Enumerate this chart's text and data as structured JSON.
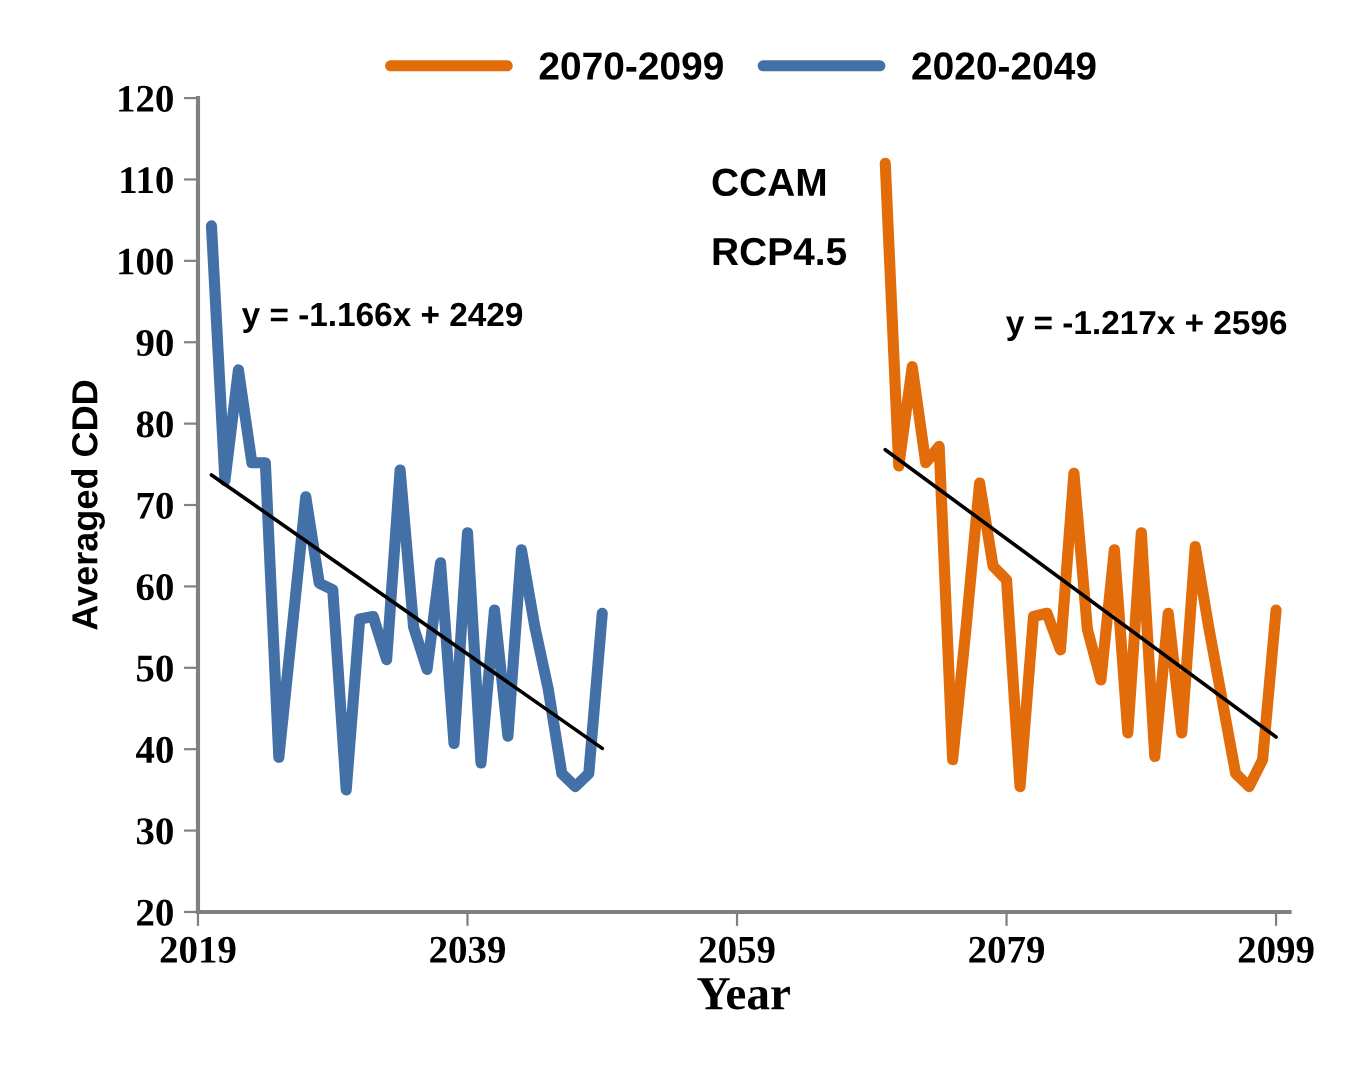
{
  "chart_data": {
    "type": "line",
    "xlabel": "Year",
    "ylabel": "Averaged CDD",
    "xlim": [
      2019,
      2100
    ],
    "xticks": [
      2019,
      2039,
      2059,
      2079,
      2099
    ],
    "ylim": [
      20,
      120
    ],
    "yticks": [
      20,
      30,
      40,
      50,
      60,
      70,
      80,
      90,
      100,
      110,
      120
    ],
    "grid": false,
    "legend": "top",
    "marker": "none",
    "line_style": "solid",
    "annotations": [
      "CCAM",
      "RCP4.5",
      "y = -1.166x + 2429",
      "y = -1.217x + 2596"
    ],
    "series": [
      {
        "name": "2070-2099",
        "color": "#e36c0a",
        "x": [
          2070,
          2071,
          2072,
          2073,
          2074,
          2075,
          2076,
          2077,
          2078,
          2079,
          2080,
          2081,
          2082,
          2083,
          2084,
          2085,
          2086,
          2087,
          2088,
          2089,
          2090,
          2091,
          2092,
          2093,
          2094,
          2095,
          2096,
          2097,
          2098,
          2099
        ],
        "values": [
          112,
          74.8,
          87,
          75.2,
          77.2,
          38.7,
          55,
          72.7,
          62.5,
          60.8,
          35.4,
          56.3,
          56.7,
          52.2,
          73.9,
          54.7,
          48.5,
          64.5,
          42,
          66.6,
          39.1,
          56.7,
          42,
          64.9,
          55,
          46,
          37,
          35.4,
          38.7,
          57.1
        ]
      },
      {
        "name": "2020-2049",
        "color": "#4470a8",
        "x": [
          2020,
          2021,
          2022,
          2023,
          2024,
          2025,
          2026,
          2027,
          2028,
          2029,
          2030,
          2031,
          2032,
          2033,
          2034,
          2035,
          2036,
          2037,
          2038,
          2039,
          2040,
          2041,
          2042,
          2043,
          2044,
          2045,
          2046,
          2047,
          2048,
          2049
        ],
        "values": [
          104.3,
          73,
          86.6,
          75.2,
          75.2,
          39,
          55,
          71,
          60.4,
          59.6,
          35,
          56,
          56.3,
          51,
          74.3,
          55,
          49.8,
          62.9,
          40.7,
          66.6,
          38.3,
          57.1,
          41.6,
          64.5,
          55,
          47.3,
          37,
          35.4,
          37,
          56.7
        ]
      },
      {
        "type": "line",
        "color": "#000000",
        "x": [
          2020,
          2049
        ],
        "values": [
          73.7,
          40.1
        ]
      },
      {
        "type": "line",
        "color": "#000000",
        "x": [
          2070,
          2099
        ],
        "values": [
          76.8,
          41.5
        ]
      }
    ]
  }
}
